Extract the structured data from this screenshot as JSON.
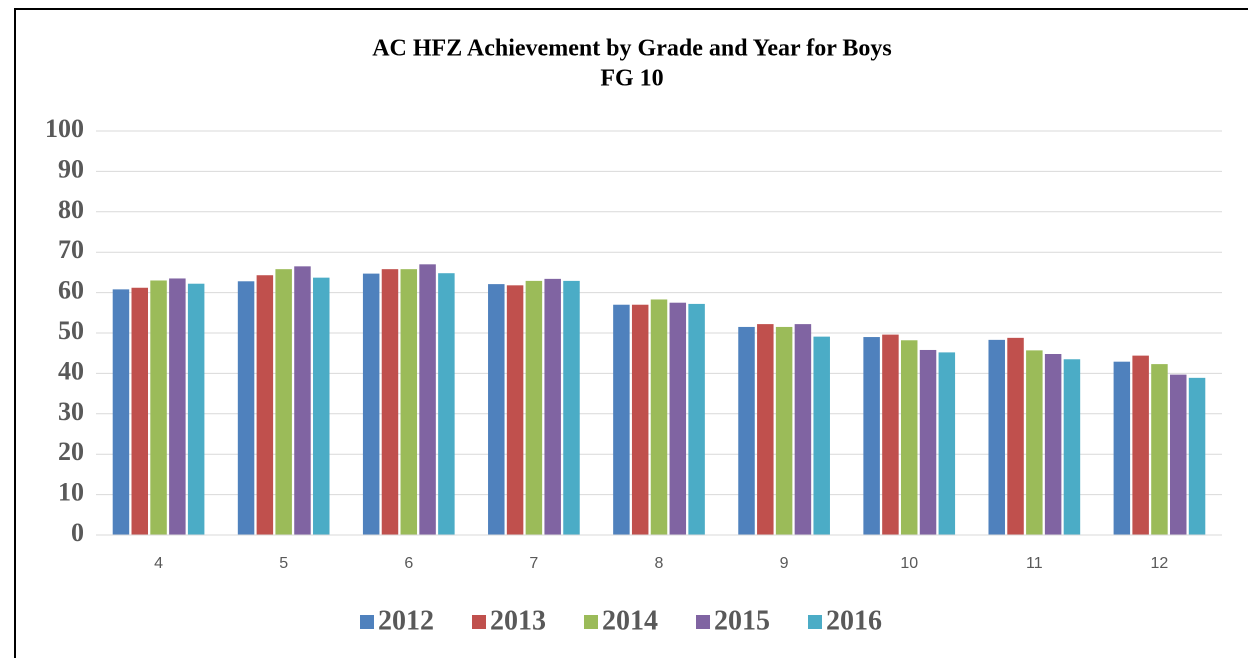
{
  "chart_data": {
    "type": "bar",
    "title": "AC HFZ Achievement by Grade and Year for Boys",
    "subtitle": "FG 10",
    "categories": [
      "4",
      "5",
      "6",
      "7",
      "8",
      "9",
      "10",
      "11",
      "12"
    ],
    "series": [
      {
        "name": "2012",
        "color": "#4f81bd",
        "values": [
          60.8,
          62.8,
          64.7,
          62.1,
          57.0,
          51.5,
          49.0,
          48.3,
          42.9
        ]
      },
      {
        "name": "2013",
        "color": "#c0504d",
        "values": [
          61.2,
          64.3,
          65.8,
          61.8,
          57.0,
          52.2,
          49.6,
          48.8,
          44.4
        ]
      },
      {
        "name": "2014",
        "color": "#9bbb59",
        "values": [
          63.0,
          65.8,
          65.8,
          62.9,
          58.3,
          51.5,
          48.2,
          45.7,
          42.3
        ]
      },
      {
        "name": "2015",
        "color": "#8064a2",
        "values": [
          63.5,
          66.5,
          67.0,
          63.4,
          57.5,
          52.2,
          45.8,
          44.8,
          39.7
        ]
      },
      {
        "name": "2016",
        "color": "#4bacc6",
        "values": [
          62.2,
          63.7,
          64.8,
          62.9,
          57.2,
          49.1,
          45.2,
          43.5,
          38.9
        ]
      }
    ],
    "ylim": [
      0,
      100
    ],
    "yticks": [
      0,
      10,
      20,
      30,
      40,
      50,
      60,
      70,
      80,
      90,
      100
    ],
    "grid": true,
    "legend": "bottom"
  }
}
